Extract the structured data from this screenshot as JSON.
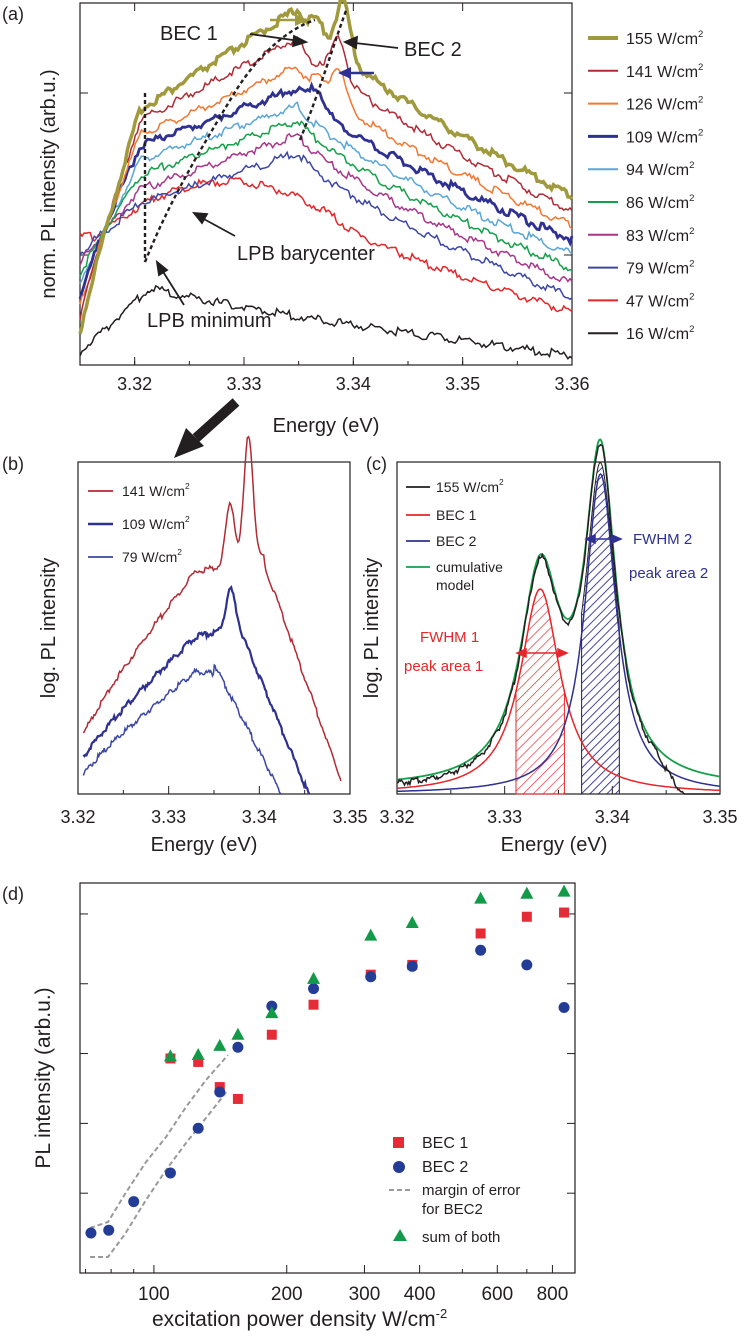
{
  "panels": [
    {
      "label": "(a)"
    },
    {
      "label": "(b)"
    },
    {
      "label": "(c)"
    },
    {
      "label": "(d)"
    }
  ],
  "chart_data": [
    {
      "id": "a",
      "type": "line",
      "xlabel": "Energy (eV)",
      "ylabel": "norm. PL intensity (arb.u.)",
      "xlim": [
        3.315,
        3.36
      ],
      "yscale": "log",
      "xticks": [
        3.32,
        3.33,
        3.34,
        3.35,
        3.36
      ],
      "tick_labels": [
        "3.32",
        "3.33",
        "3.34",
        "3.35",
        "3.36"
      ],
      "series": [
        {
          "name": "155 W/cm²",
          "color": "#a09a3c",
          "left": 0.92,
          "shoulder": 0.3,
          "peak": 0.02,
          "end": 0.54,
          "peaks": [
            [
              3.3365,
              0.05
            ],
            [
              3.339,
              0.0
            ]
          ]
        },
        {
          "name": "141 W/cm²",
          "color": "#b22a34",
          "left": 0.88,
          "shoulder": 0.33,
          "peak": 0.1,
          "end": 0.58,
          "peaks": [
            [
              3.3365,
              0.17
            ],
            [
              3.3386,
              0.1
            ]
          ]
        },
        {
          "name": "126 W/cm²",
          "color": "#f07830",
          "left": 0.85,
          "shoulder": 0.37,
          "peak": 0.18,
          "end": 0.62,
          "peaks": [
            [
              3.3365,
              0.21
            ],
            [
              3.3385,
              0.18
            ]
          ]
        },
        {
          "name": "109 W/cm²",
          "color": "#2e3192",
          "left": 0.82,
          "shoulder": 0.4,
          "peak": 0.24,
          "end": 0.66,
          "peaks": [
            [
              3.3365,
              0.24
            ]
          ]
        },
        {
          "name": "94 W/cm²",
          "color": "#5aa6d6",
          "left": 0.79,
          "shoulder": 0.44,
          "peak": 0.29,
          "end": 0.7,
          "peaks": []
        },
        {
          "name": "86 W/cm²",
          "color": "#14a04a",
          "left": 0.76,
          "shoulder": 0.48,
          "peak": 0.33,
          "end": 0.74,
          "peaks": []
        },
        {
          "name": "83 W/cm²",
          "color": "#a8368a",
          "left": 0.73,
          "shoulder": 0.52,
          "peak": 0.37,
          "end": 0.78,
          "peaks": []
        },
        {
          "name": "79 W/cm²",
          "color": "#3c47a5",
          "left": 0.7,
          "shoulder": 0.56,
          "peak": 0.42,
          "end": 0.82,
          "peaks": []
        },
        {
          "name": "47 W/cm²",
          "color": "#e5262a",
          "left": 0.65,
          "shoulder": 0.66,
          "peak": 0.55,
          "end": 0.86,
          "peaks": []
        },
        {
          "name": "16 W/cm²",
          "color": "#231f20",
          "left": 0.97,
          "shoulder": 0.86,
          "peak": 0.8,
          "end": 0.98,
          "peaks": []
        }
      ],
      "annotations": {
        "bec1": "BEC 1",
        "bec2": "BEC 2",
        "lpb_barycenter": "LPB barycenter",
        "lpb_minimum": "LPB minimum"
      }
    },
    {
      "id": "b",
      "type": "line",
      "xlabel": "Energy (eV)",
      "ylabel": "log. PL intensity",
      "xlim": [
        3.32,
        3.35
      ],
      "yscale": "log",
      "xticks": [
        3.32,
        3.33,
        3.34,
        3.35
      ],
      "tick_labels": [
        "3.32",
        "3.33",
        "3.34",
        "3.35"
      ],
      "series": [
        {
          "name": "141 W/cm²",
          "color": "#b22a34"
        },
        {
          "name": "109 W/cm²",
          "color": "#2e3192"
        },
        {
          "name": "79 W/cm²",
          "color": "#3c47a5"
        }
      ]
    },
    {
      "id": "c",
      "type": "line",
      "xlabel": "Energy (eV)",
      "ylabel": "log. PL intensity",
      "xlim": [
        3.32,
        3.35
      ],
      "xticks": [
        3.32,
        3.33,
        3.34,
        3.35
      ],
      "tick_labels": [
        "3.32",
        "3.33",
        "3.34",
        "3.35"
      ],
      "series": [
        {
          "name": "155 W/cm²",
          "color": "#231f20"
        },
        {
          "name": "BEC 1",
          "color": "#e5262a",
          "center": 3.3333,
          "fwhm": 0.0045
        },
        {
          "name": "BEC 2",
          "color": "#2e3192",
          "center": 3.3389,
          "fwhm": 0.0035
        },
        {
          "name": "cumulative\nmodel",
          "name_line1": "cumulative",
          "name_line2": "model",
          "color": "#14a04a"
        }
      ],
      "annotations": {
        "fwhm1": "FWHM 1",
        "area1": "peak area 1",
        "fwhm2": "FWHM 2",
        "area2": "peak area 2"
      }
    },
    {
      "id": "d",
      "type": "scatter",
      "xlabel": "excitation power density W/cm",
      "xlabel_sup": "-2",
      "ylabel": "PL intensity (arb.u.)",
      "xscale": "log",
      "yscale": "log",
      "xlim": [
        68,
        900
      ],
      "xticks": [
        100,
        200,
        300,
        400,
        600,
        800
      ],
      "tick_labels": [
        "100",
        "200",
        "300",
        "400",
        "600",
        "800"
      ],
      "ylim_decades": [
        0,
        5.3
      ],
      "x": [
        72,
        79,
        90,
        109,
        126,
        141,
        155,
        185,
        230,
        310,
        385,
        550,
        700,
        850
      ],
      "series": [
        {
          "name": "BEC 1",
          "marker": "square",
          "color": "#e52b35",
          "x": [
            109,
            126,
            141,
            155,
            185,
            230,
            310,
            385,
            550,
            700,
            850
          ],
          "values": [
            2.93,
            2.88,
            2.52,
            2.35,
            3.27,
            3.7,
            4.13,
            4.27,
            4.72,
            4.96,
            5.02
          ]
        },
        {
          "name": "BEC 2",
          "marker": "circle",
          "color": "#233d96",
          "x": [
            72,
            79,
            90,
            109,
            126,
            141,
            155,
            185,
            230,
            310,
            385,
            550,
            700,
            850
          ],
          "values": [
            0.43,
            0.47,
            0.88,
            1.29,
            1.93,
            2.45,
            3.09,
            3.68,
            3.93,
            4.1,
            4.25,
            4.48,
            4.27,
            3.66
          ]
        },
        {
          "name": "sum of both",
          "marker": "triangle",
          "color": "#129a48",
          "x": [
            109,
            126,
            141,
            155,
            185,
            230,
            310,
            385,
            550,
            700,
            850
          ],
          "values": [
            2.96,
            2.98,
            3.11,
            3.27,
            3.58,
            4.07,
            4.69,
            4.87,
            5.22,
            5.29,
            5.32
          ]
        }
      ],
      "legend": {
        "bec1": "BEC 1",
        "bec2": "BEC 2",
        "margin_line1": "margin of error",
        "margin_line2": "for BEC2",
        "sum": "sum of both"
      }
    }
  ]
}
